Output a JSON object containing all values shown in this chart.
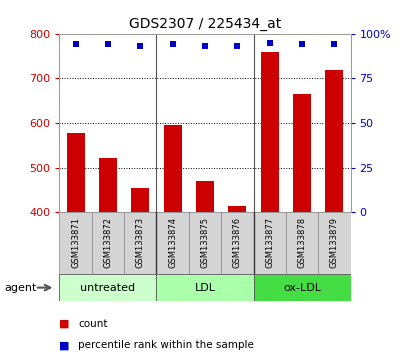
{
  "title": "GDS2307 / 225434_at",
  "samples": [
    "GSM133871",
    "GSM133872",
    "GSM133873",
    "GSM133874",
    "GSM133875",
    "GSM133876",
    "GSM133877",
    "GSM133878",
    "GSM133879"
  ],
  "counts": [
    578,
    522,
    455,
    595,
    470,
    415,
    758,
    665,
    718
  ],
  "percentiles": [
    94,
    94,
    93,
    94,
    93,
    93,
    95,
    94,
    94
  ],
  "bar_color": "#cc0000",
  "dot_color": "#0000cc",
  "ylim_left": [
    400,
    800
  ],
  "yticks_left": [
    400,
    500,
    600,
    700,
    800
  ],
  "ylim_right": [
    0,
    100
  ],
  "yticks_right": [
    0,
    25,
    50,
    75,
    100
  ],
  "groups": [
    {
      "label": "untreated",
      "start": 0,
      "end": 3,
      "color": "#ccffcc"
    },
    {
      "label": "LDL",
      "start": 3,
      "end": 6,
      "color": "#aaffaa"
    },
    {
      "label": "ox-LDL",
      "start": 6,
      "end": 9,
      "color": "#44dd44"
    }
  ],
  "agent_label": "agent",
  "legend_count": "count",
  "legend_percentile": "percentile rank within the sample",
  "background_color": "#ffffff",
  "left_axis_color": "#cc0000",
  "right_axis_color": "#0000cc",
  "label_bg": "#d4d4d4",
  "label_edge": "#888888"
}
